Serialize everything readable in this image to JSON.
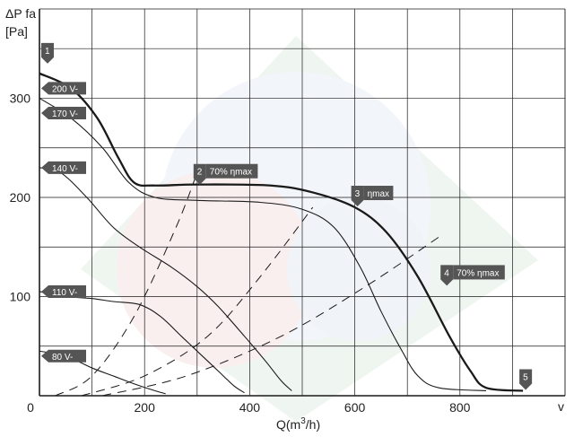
{
  "chart_data": {
    "type": "line",
    "ylabel_line1": "ΔP fa",
    "ylabel_line2": "[Pa]",
    "xlabel_main": "Q(m",
    "xlabel_sup": "3",
    "xlabel_end": "/h)",
    "xlabel_right": "v",
    "xlim": [
      0,
      1000
    ],
    "ylim": [
      0,
      390
    ],
    "x_ticks": [
      0,
      200,
      400,
      600,
      800
    ],
    "y_ticks": [
      100,
      200,
      300
    ],
    "grid": true,
    "colors": {
      "curve": "#1a1a1a",
      "tag": "#555555",
      "watermark": "#dde8f0"
    },
    "series": [
      {
        "name": "200 V",
        "bold": true,
        "points": [
          [
            0,
            325
          ],
          [
            60,
            310
          ],
          [
            110,
            280
          ],
          [
            150,
            240
          ],
          [
            180,
            215
          ],
          [
            220,
            212
          ],
          [
            300,
            213
          ],
          [
            440,
            212
          ],
          [
            520,
            205
          ],
          [
            600,
            190
          ],
          [
            660,
            165
          ],
          [
            720,
            120
          ],
          [
            780,
            60
          ],
          [
            820,
            25
          ],
          [
            850,
            8
          ],
          [
            920,
            5
          ]
        ]
      },
      {
        "name": "170 V",
        "points": [
          [
            0,
            300
          ],
          [
            60,
            280
          ],
          [
            120,
            250
          ],
          [
            170,
            215
          ],
          [
            220,
            200
          ],
          [
            300,
            197
          ],
          [
            420,
            195
          ],
          [
            500,
            188
          ],
          [
            560,
            170
          ],
          [
            610,
            130
          ],
          [
            650,
            85
          ],
          [
            690,
            45
          ],
          [
            720,
            20
          ],
          [
            760,
            8
          ],
          [
            850,
            5
          ]
        ]
      },
      {
        "name": "140 V",
        "points": [
          [
            0,
            230
          ],
          [
            40,
            225
          ],
          [
            90,
            200
          ],
          [
            140,
            170
          ],
          [
            190,
            150
          ],
          [
            250,
            130
          ],
          [
            300,
            110
          ],
          [
            340,
            90
          ],
          [
            390,
            60
          ],
          [
            430,
            35
          ],
          [
            460,
            15
          ],
          [
            480,
            5
          ]
        ]
      },
      {
        "name": "110 V",
        "points": [
          [
            0,
            105
          ],
          [
            50,
            100
          ],
          [
            100,
            98
          ],
          [
            140,
            95
          ],
          [
            190,
            92
          ],
          [
            230,
            80
          ],
          [
            270,
            60
          ],
          [
            310,
            40
          ],
          [
            340,
            25
          ],
          [
            370,
            10
          ],
          [
            390,
            3
          ]
        ]
      },
      {
        "name": "80 V",
        "points": [
          [
            0,
            45
          ],
          [
            50,
            40
          ],
          [
            100,
            28
          ],
          [
            140,
            20
          ],
          [
            180,
            12
          ],
          [
            220,
            5
          ],
          [
            240,
            2
          ]
        ]
      }
    ],
    "efficiency_lines": [
      {
        "points": [
          [
            30,
            0
          ],
          [
            100,
            20
          ],
          [
            180,
            80
          ],
          [
            260,
            170
          ],
          [
            300,
            225
          ]
        ]
      },
      {
        "points": [
          [
            80,
            0
          ],
          [
            200,
            20
          ],
          [
            320,
            60
          ],
          [
            420,
            120
          ],
          [
            520,
            190
          ]
        ]
      },
      {
        "points": [
          [
            120,
            0
          ],
          [
            280,
            20
          ],
          [
            460,
            60
          ],
          [
            620,
            110
          ],
          [
            760,
            160
          ]
        ]
      }
    ],
    "point_labels": [
      {
        "num": "1",
        "text": "",
        "x": 0,
        "y": 325
      },
      {
        "num": "2",
        "text": "70% ηmax",
        "x": 300,
        "y": 212
      },
      {
        "num": "3",
        "text": "ηmax",
        "x": 600,
        "y": 190
      },
      {
        "num": "4",
        "text": "70% ηmax",
        "x": 770,
        "y": 110
      },
      {
        "num": "5",
        "text": "",
        "x": 920,
        "y": 5
      }
    ],
    "voltage_labels": [
      {
        "text": "200 V",
        "y": 310
      },
      {
        "text": "170 V",
        "y": 285
      },
      {
        "text": "140 V",
        "y": 230
      },
      {
        "text": "110 V",
        "y": 105
      },
      {
        "text": "80 V",
        "y": 40
      }
    ]
  }
}
